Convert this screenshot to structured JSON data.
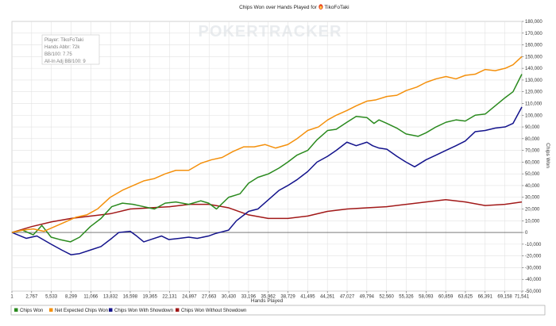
{
  "chart_data": {
    "type": "line",
    "title": "Chips Won over Hands Played for",
    "player_name": "TikoFoTaki",
    "watermark": "POKERTRACKER",
    "xlabel": "Hands Played",
    "ylabel": "Chips Won",
    "xlim": [
      1,
      71541
    ],
    "ylim": [
      -50000,
      180000
    ],
    "x_ticks": [
      "1",
      "2,767",
      "5,533",
      "8,299",
      "11,066",
      "13,832",
      "16,598",
      "19,365",
      "22,131",
      "24,897",
      "27,663",
      "30,430",
      "33,196",
      "35,962",
      "38,729",
      "41,495",
      "44,261",
      "47,027",
      "49,794",
      "52,560",
      "55,326",
      "58,093",
      "60,859",
      "63,625",
      "66,391",
      "69,158",
      "71,541"
    ],
    "y_ticks": [
      "-50,000",
      "-40,000",
      "-30,000",
      "-20,000",
      "-10,000",
      "0",
      "10,000",
      "20,000",
      "30,000",
      "40,000",
      "50,000",
      "60,000",
      "70,000",
      "80,000",
      "90,000",
      "100,000",
      "110,000",
      "120,000",
      "130,000",
      "140,000",
      "150,000",
      "160,000",
      "170,000",
      "180,000"
    ],
    "grid": true,
    "legend_position": "bottom",
    "info_box": [
      "Player: TikoFoTaki",
      "Hands Abbr: 72k",
      "BB/100: 7.75",
      "All-In Adj BB/100: 9"
    ],
    "series": [
      {
        "name": "Chips Won",
        "color": "#2a8a1e",
        "x": [
          1,
          1500,
          3000,
          4200,
          5500,
          6700,
          8200,
          9500,
          11000,
          12500,
          14000,
          15500,
          17000,
          18500,
          20000,
          21500,
          23000,
          24800,
          26500,
          27600,
          28700,
          30400,
          32000,
          33200,
          34500,
          36000,
          37500,
          38700,
          40000,
          41500,
          42800,
          44300,
          45500,
          47000,
          48300,
          49800,
          50800,
          51500,
          52600,
          54000,
          55300,
          57000,
          58100,
          59500,
          60900,
          62300,
          63600,
          65000,
          66400,
          67800,
          69200,
          70300,
          71541
        ],
        "values": [
          0,
          2000,
          -2000,
          6000,
          -4000,
          -6000,
          -8000,
          -4000,
          5000,
          12000,
          22000,
          25000,
          24000,
          22000,
          20000,
          25000,
          26000,
          24000,
          27000,
          25000,
          20000,
          30000,
          33000,
          42000,
          47000,
          50000,
          55000,
          60000,
          66000,
          70000,
          79000,
          87000,
          88000,
          94000,
          99000,
          98000,
          93000,
          96000,
          93000,
          89000,
          84000,
          82000,
          85000,
          90000,
          94000,
          96000,
          95000,
          100000,
          101000,
          108000,
          115000,
          120000,
          135000
        ]
      },
      {
        "name": "Net Expected Chips Won",
        "color": "#f4900c",
        "x": [
          1,
          1500,
          3000,
          4500,
          6000,
          7500,
          9000,
          10500,
          12000,
          13800,
          15500,
          17000,
          18500,
          20000,
          21500,
          23000,
          24800,
          26500,
          28000,
          29500,
          31000,
          32500,
          34000,
          35500,
          37000,
          38700,
          40000,
          41500,
          43000,
          44300,
          45500,
          47000,
          48300,
          49800,
          51000,
          52600,
          54000,
          55300,
          56800,
          58100,
          59500,
          60900,
          62300,
          63600,
          65000,
          66400,
          67800,
          69200,
          70300,
          71541
        ],
        "values": [
          0,
          2000,
          3000,
          1000,
          5000,
          9000,
          13000,
          15000,
          20000,
          30000,
          36000,
          40000,
          44000,
          46000,
          50000,
          53000,
          53000,
          59000,
          62000,
          64000,
          69000,
          73000,
          73000,
          75000,
          72000,
          75000,
          80000,
          87000,
          90000,
          96000,
          100000,
          104000,
          108000,
          112000,
          113000,
          116000,
          117000,
          121000,
          124000,
          128000,
          131000,
          133000,
          131000,
          134000,
          135000,
          139000,
          138000,
          140000,
          143000,
          150000
        ]
      },
      {
        "name": "Chips Won With Showdown",
        "color": "#13138c",
        "x": [
          1,
          2000,
          3500,
          5500,
          7000,
          8300,
          9500,
          11000,
          12500,
          14000,
          15000,
          16600,
          17500,
          18500,
          19500,
          21000,
          22000,
          23500,
          24800,
          26000,
          27600,
          28500,
          30400,
          31500,
          33200,
          34500,
          36000,
          37500,
          38700,
          40000,
          41500,
          42800,
          44300,
          45500,
          47000,
          48300,
          49800,
          50600,
          51500,
          52600,
          54000,
          55300,
          56500,
          58100,
          59500,
          60900,
          62300,
          63600,
          65000,
          66400,
          67800,
          69200,
          70300,
          71541
        ],
        "values": [
          0,
          -5000,
          -3000,
          -10000,
          -15000,
          -19000,
          -18000,
          -15000,
          -12000,
          -5000,
          0,
          1000,
          -3000,
          -8000,
          -6000,
          -3000,
          -6000,
          -5000,
          -4000,
          -5000,
          -3000,
          -1000,
          2000,
          10000,
          18000,
          20000,
          28000,
          36000,
          40000,
          45000,
          52000,
          60000,
          65000,
          70000,
          77000,
          74000,
          77000,
          74000,
          72000,
          71000,
          65000,
          60000,
          56000,
          62000,
          66000,
          70000,
          74000,
          78000,
          86000,
          87000,
          89000,
          90000,
          93000,
          107000
        ]
      },
      {
        "name": "Chips Won Without Showdown",
        "color": "#a11818",
        "x": [
          1,
          2767,
          5533,
          8299,
          11066,
          13832,
          16598,
          19365,
          22131,
          24897,
          27663,
          30430,
          33196,
          35962,
          38729,
          41495,
          44261,
          47027,
          49794,
          52560,
          55326,
          58093,
          60859,
          63625,
          66391,
          69158,
          71541
        ],
        "values": [
          0,
          5000,
          9000,
          12000,
          14000,
          16000,
          20000,
          21000,
          22000,
          24000,
          24000,
          21000,
          15000,
          12000,
          12000,
          14000,
          18000,
          20000,
          21000,
          22000,
          24000,
          26000,
          28000,
          26000,
          23000,
          24000,
          26000
        ]
      }
    ]
  }
}
